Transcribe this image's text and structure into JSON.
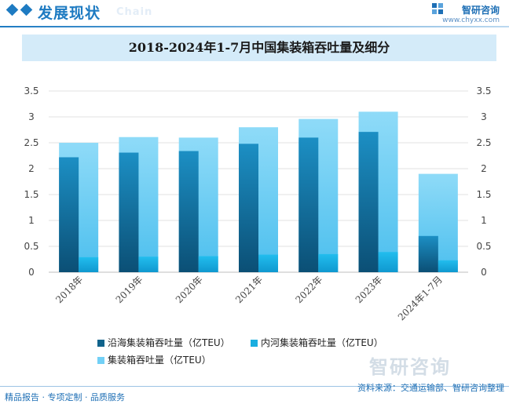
{
  "header": {
    "section_title": "发展现状",
    "section_subtitle": "Chain",
    "brand_name": "智研咨询",
    "brand_url": "www.chyxx.com"
  },
  "watermark": "智研咨询",
  "colors": {
    "coastal": "#10638c",
    "inland": "#1aaee0",
    "total": "#72d0f6",
    "accent": "#1e7bc2"
  },
  "chart_data": {
    "type": "bar",
    "title": "2018-2024年1-7月中国集装箱吞吐量及细分",
    "categories": [
      "2018年",
      "2019年",
      "2020年",
      "2021年",
      "2022年",
      "2023年",
      "2024年1-7月"
    ],
    "series": [
      {
        "name": "沿海集装箱吞吐量（亿TEU）",
        "values": [
          2.22,
          2.31,
          2.34,
          2.48,
          2.6,
          2.71,
          0.7
        ]
      },
      {
        "name": "内河集装箱吞吐量（亿TEU）",
        "values": [
          0.29,
          0.3,
          0.31,
          0.34,
          0.35,
          0.39,
          0.23
        ]
      },
      {
        "name": "集装箱吞吐量（亿TEU）",
        "values": [
          2.5,
          2.61,
          2.6,
          2.8,
          2.96,
          3.1,
          1.9
        ]
      }
    ],
    "yticks": [
      "0",
      "0.5",
      "1",
      "1.5",
      "2",
      "2.5",
      "3",
      "3.5"
    ],
    "ylim": [
      0,
      3.5
    ],
    "y2ticks": [
      "0",
      "0.5",
      "1",
      "1.5",
      "2",
      "2.5",
      "3",
      "3.5"
    ],
    "grid": true,
    "legend_position": "bottom"
  },
  "footer": {
    "left": "精品报告 · 专项定制 · 品质服务",
    "right": "资料来源：交通运输部、智研咨询整理"
  }
}
